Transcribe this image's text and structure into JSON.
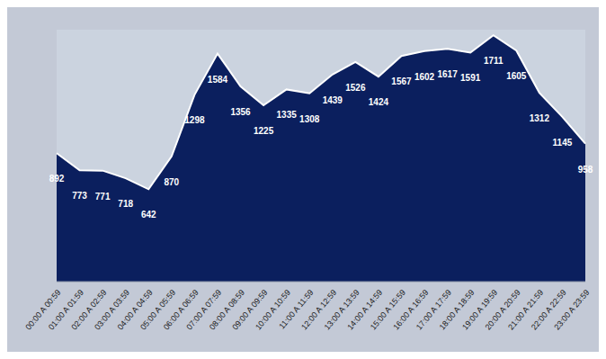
{
  "chart_data": {
    "type": "area",
    "categories": [
      "00:00 A 00:59",
      "01:00 A 01:59",
      "02:00 A 02:59",
      "03:00 A 03:59",
      "04:00 A 04:59",
      "05:00 A 05:59",
      "06:00 A 06:59",
      "07:00 A 07:59",
      "08:00 A 08:59",
      "09:00 A 09:59",
      "10:00 A 10:59",
      "11:00 A 11:59",
      "12:00 A 12:59",
      "13:00 A 13:59",
      "14:00 A 14:59",
      "15:00 A 15:59",
      "16:00 A 16:59",
      "17:00 A 17:59",
      "18:00 A 18:59",
      "19:00 A 19:59",
      "20:00 A 20:59",
      "21:00 A 21:59",
      "22:00 A 22:59",
      "23:00 A 23:59"
    ],
    "values": [
      892,
      773,
      771,
      718,
      642,
      870,
      1298,
      1584,
      1356,
      1225,
      1335,
      1308,
      1439,
      1526,
      1424,
      1567,
      1602,
      1617,
      1591,
      1711,
      1605,
      1312,
      1145,
      958
    ],
    "color": "#0b1f5e",
    "ylim": [
      0,
      1750
    ],
    "grid": false,
    "data_labels": true,
    "tick_labels": "x"
  }
}
